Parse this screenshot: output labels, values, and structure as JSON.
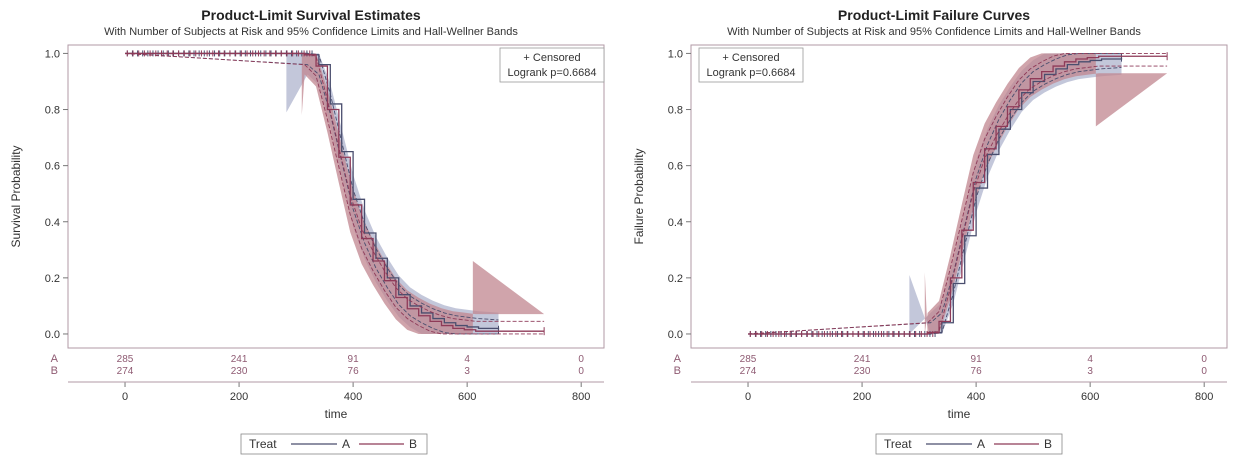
{
  "colors": {
    "series_a": "#4a4e6e",
    "series_b": "#8e3a58",
    "band_a": "#b9bdd3",
    "band_b": "#c0858f",
    "frame": "#b09aa6",
    "text": "#333333",
    "risk_text": "#8e5a72"
  },
  "chart_data": [
    {
      "type": "line",
      "kind": "survival",
      "title": "Product-Limit Survival Estimates",
      "subtitle": "With Number of Subjects at Risk and 95% Confidence Limits and Hall-Wellner Bands",
      "xlabel": "time",
      "ylabel": "Survival Probability",
      "xlim": [
        -100,
        840
      ],
      "ylim": [
        -0.05,
        1.03
      ],
      "xticks": [
        0,
        200,
        400,
        600,
        800
      ],
      "yticks": [
        0.0,
        0.2,
        0.4,
        0.6,
        0.8,
        1.0
      ],
      "ytick_labels": [
        "0.0",
        "0.2",
        "0.4",
        "0.6",
        "0.8",
        "1.0"
      ],
      "inset": {
        "line1": "+ Censored",
        "line2": "Logrank p=0.6684"
      },
      "series": [
        {
          "name": "A",
          "x": [
            0,
            320,
            340,
            360,
            380,
            400,
            420,
            440,
            460,
            480,
            500,
            520,
            540,
            560,
            580,
            600,
            620,
            655
          ],
          "y": [
            1.0,
            0.995,
            0.96,
            0.82,
            0.65,
            0.48,
            0.36,
            0.27,
            0.2,
            0.14,
            0.1,
            0.075,
            0.055,
            0.04,
            0.03,
            0.025,
            0.02,
            0.015
          ],
          "censor_max": 330,
          "hall_wellner_band": {
            "x_start": 283,
            "x_end": 655,
            "upper_end": 0.24,
            "lower_start": 0.79
          }
        },
        {
          "name": "B",
          "x": [
            0,
            315,
            335,
            355,
            375,
            395,
            415,
            435,
            455,
            475,
            495,
            515,
            535,
            555,
            575,
            595,
            615,
            735
          ],
          "y": [
            1.0,
            0.995,
            0.955,
            0.8,
            0.63,
            0.46,
            0.34,
            0.26,
            0.19,
            0.13,
            0.09,
            0.065,
            0.045,
            0.03,
            0.02,
            0.015,
            0.01,
            0.01
          ],
          "censor_max": 325,
          "hall_wellner_band": {
            "x_start": 310,
            "x_end": 610,
            "upper_end": 0.26,
            "lower_start": 0.78
          }
        }
      ],
      "at_risk": {
        "times": [
          0,
          200,
          400,
          600,
          800
        ],
        "rows": [
          {
            "label": "A",
            "values": [
              "285",
              "241",
              "91",
              "4",
              "0"
            ]
          },
          {
            "label": "B",
            "values": [
              "274",
              "230",
              "76",
              "3",
              "0"
            ]
          }
        ]
      },
      "legend": {
        "title": "Treat",
        "entries": [
          "A",
          "B"
        ],
        "placement": "bottom-center"
      }
    },
    {
      "type": "line",
      "kind": "failure",
      "title": "Product-Limit Failure Curves",
      "subtitle": "With Number of Subjects at Risk and 95% Confidence Limits and Hall-Wellner Bands",
      "xlabel": "time",
      "ylabel": "Failure Probability",
      "xlim": [
        -100,
        840
      ],
      "ylim": [
        -0.05,
        1.03
      ],
      "xticks": [
        0,
        200,
        400,
        600,
        800
      ],
      "yticks": [
        0.0,
        0.2,
        0.4,
        0.6,
        0.8,
        1.0
      ],
      "ytick_labels": [
        "0.0",
        "0.2",
        "0.4",
        "0.6",
        "0.8",
        "1.0"
      ],
      "inset": {
        "line1": "+ Censored",
        "line2": "Logrank p=0.6684"
      },
      "series": [
        {
          "name": "A",
          "x": [
            0,
            320,
            340,
            360,
            380,
            400,
            420,
            440,
            460,
            480,
            500,
            520,
            540,
            560,
            580,
            600,
            620,
            655
          ],
          "y": [
            0.0,
            0.005,
            0.04,
            0.18,
            0.35,
            0.52,
            0.64,
            0.73,
            0.8,
            0.86,
            0.9,
            0.925,
            0.945,
            0.96,
            0.97,
            0.975,
            0.98,
            0.985
          ],
          "censor_max": 330,
          "hall_wellner_band": {
            "x_start": 283,
            "x_end": 655,
            "upper_end": 0.76,
            "lower_start": 0.21
          }
        },
        {
          "name": "B",
          "x": [
            0,
            315,
            335,
            355,
            375,
            395,
            415,
            435,
            455,
            475,
            495,
            515,
            535,
            555,
            575,
            595,
            615,
            735
          ],
          "y": [
            0.0,
            0.005,
            0.045,
            0.2,
            0.37,
            0.54,
            0.66,
            0.74,
            0.81,
            0.87,
            0.91,
            0.935,
            0.955,
            0.97,
            0.98,
            0.985,
            0.99,
            0.99
          ],
          "censor_max": 325,
          "hall_wellner_band": {
            "x_start": 310,
            "x_end": 610,
            "upper_end": 0.74,
            "lower_start": 0.22
          }
        }
      ],
      "at_risk": {
        "times": [
          0,
          200,
          400,
          600,
          800
        ],
        "rows": [
          {
            "label": "A",
            "values": [
              "285",
              "241",
              "91",
              "4",
              "0"
            ]
          },
          {
            "label": "B",
            "values": [
              "274",
              "230",
              "76",
              "3",
              "0"
            ]
          }
        ]
      },
      "legend": {
        "title": "Treat",
        "entries": [
          "A",
          "B"
        ],
        "placement": "bottom-center"
      }
    }
  ]
}
